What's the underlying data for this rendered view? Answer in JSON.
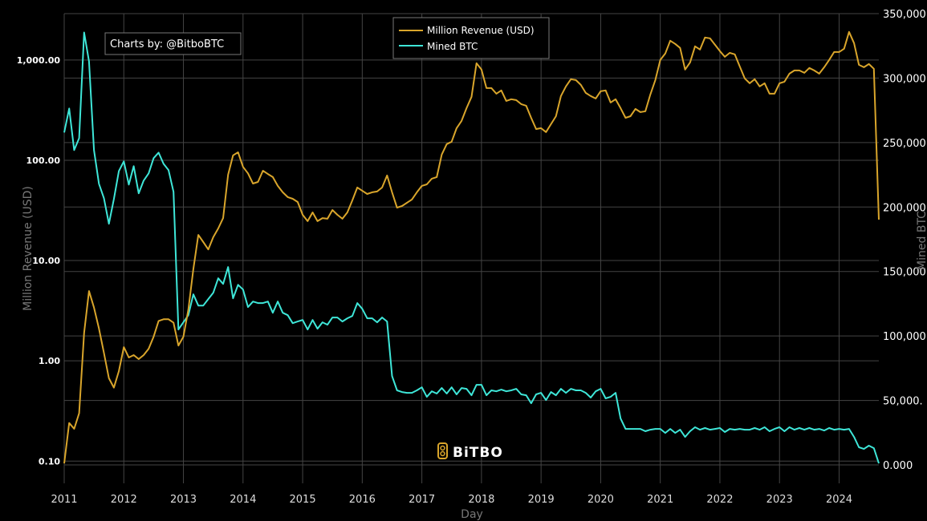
{
  "chart_data": {
    "type": "line",
    "credit": "Charts by: @BitboBTC",
    "watermark": "BITBO",
    "xlabel": "Day",
    "ylabel_left": "Million Revenue (USD)",
    "ylabel_right": "Mined BTC",
    "x_ticks": [
      "2011",
      "2012",
      "2013",
      "2014",
      "2015",
      "2016",
      "2017",
      "2018",
      "2019",
      "2020",
      "2021",
      "2022",
      "2023",
      "2024"
    ],
    "y_left_scale": "log",
    "y_left_ticks": [
      "1,000.00",
      "100.00",
      "10.00",
      "1.00",
      "0.10"
    ],
    "y_left_tick_values": [
      1000,
      100,
      10,
      1,
      0.1
    ],
    "y_left_range": [
      0.09,
      2900
    ],
    "y_right_ticks": [
      "350,000",
      "300,000",
      "250,000",
      "200,000",
      "150,000",
      "100,000",
      "50,000.",
      "0.000"
    ],
    "y_right_tick_values": [
      350000,
      300000,
      250000,
      200000,
      150000,
      100000,
      50000,
      0
    ],
    "y_right_range": [
      0,
      350000
    ],
    "x_range": [
      "2011-01",
      "2024-09"
    ],
    "grid": true,
    "legend_position": "top-center",
    "colors": {
      "revenue": "#d9a52b",
      "mined": "#3ee6d8",
      "grid": "#444444",
      "background": "#000000"
    },
    "dates": [
      "2011-01",
      "2011-02",
      "2011-03",
      "2011-04",
      "2011-05",
      "2011-06",
      "2011-07",
      "2011-08",
      "2011-09",
      "2011-10",
      "2011-11",
      "2011-12",
      "2012-01",
      "2012-02",
      "2012-03",
      "2012-04",
      "2012-05",
      "2012-06",
      "2012-07",
      "2012-08",
      "2012-09",
      "2012-10",
      "2012-11",
      "2012-12",
      "2013-01",
      "2013-02",
      "2013-03",
      "2013-04",
      "2013-05",
      "2013-06",
      "2013-07",
      "2013-08",
      "2013-09",
      "2013-10",
      "2013-11",
      "2013-12",
      "2014-01",
      "2014-02",
      "2014-03",
      "2014-04",
      "2014-05",
      "2014-06",
      "2014-07",
      "2014-08",
      "2014-09",
      "2014-10",
      "2014-11",
      "2014-12",
      "2015-01",
      "2015-02",
      "2015-03",
      "2015-04",
      "2015-05",
      "2015-06",
      "2015-07",
      "2015-08",
      "2015-09",
      "2015-10",
      "2015-11",
      "2015-12",
      "2016-01",
      "2016-02",
      "2016-03",
      "2016-04",
      "2016-05",
      "2016-06",
      "2016-07",
      "2016-08",
      "2016-09",
      "2016-10",
      "2016-11",
      "2016-12",
      "2017-01",
      "2017-02",
      "2017-03",
      "2017-04",
      "2017-05",
      "2017-06",
      "2017-07",
      "2017-08",
      "2017-09",
      "2017-10",
      "2017-11",
      "2017-12",
      "2018-01",
      "2018-02",
      "2018-03",
      "2018-04",
      "2018-05",
      "2018-06",
      "2018-07",
      "2018-08",
      "2018-09",
      "2018-10",
      "2018-11",
      "2018-12",
      "2019-01",
      "2019-02",
      "2019-03",
      "2019-04",
      "2019-05",
      "2019-06",
      "2019-07",
      "2019-08",
      "2019-09",
      "2019-10",
      "2019-11",
      "2019-12",
      "2020-01",
      "2020-02",
      "2020-03",
      "2020-04",
      "2020-05",
      "2020-06",
      "2020-07",
      "2020-08",
      "2020-09",
      "2020-10",
      "2020-11",
      "2020-12",
      "2021-01",
      "2021-02",
      "2021-03",
      "2021-04",
      "2021-05",
      "2021-06",
      "2021-07",
      "2021-08",
      "2021-09",
      "2021-10",
      "2021-11",
      "2021-12",
      "2022-01",
      "2022-02",
      "2022-03",
      "2022-04",
      "2022-05",
      "2022-06",
      "2022-07",
      "2022-08",
      "2022-09",
      "2022-10",
      "2022-11",
      "2022-12",
      "2023-01",
      "2023-02",
      "2023-03",
      "2023-04",
      "2023-05",
      "2023-06",
      "2023-07",
      "2023-08",
      "2023-09",
      "2023-10",
      "2023-11",
      "2023-12",
      "2024-01",
      "2024-02",
      "2024-03",
      "2024-04",
      "2024-05",
      "2024-06",
      "2024-07",
      "2024-08",
      "2024-09"
    ],
    "series": [
      {
        "name": "Million Revenue (USD)",
        "axis": "left",
        "values": [
          0.095,
          0.24,
          0.21,
          0.3,
          1.9,
          4.97,
          3.4,
          2.1,
          1.2,
          0.67,
          0.54,
          0.79,
          1.37,
          1.08,
          1.14,
          1.04,
          1.14,
          1.32,
          1.74,
          2.5,
          2.6,
          2.6,
          2.4,
          1.42,
          1.74,
          3.25,
          8.2,
          18.0,
          15.3,
          12.9,
          17.1,
          20.9,
          26.5,
          71.8,
          112,
          120,
          86,
          74,
          58.6,
          60.8,
          78.7,
          73,
          68,
          55.5,
          47.9,
          42.9,
          41.3,
          38.4,
          28.6,
          24.7,
          30.2,
          24.7,
          26.5,
          26.1,
          31.9,
          28.6,
          26.1,
          30.2,
          39.8,
          53.5,
          49.7,
          46.1,
          47.9,
          48.8,
          53.5,
          70.5,
          47.9,
          33.7,
          35.0,
          37.7,
          40.6,
          47.9,
          55.5,
          57.5,
          65.5,
          68,
          114,
          145,
          153,
          209,
          247,
          331,
          429,
          929,
          802,
          525,
          525,
          461,
          497,
          391,
          406,
          398,
          363,
          350,
          265,
          205,
          209,
          191,
          229,
          275,
          437,
          545,
          643,
          631,
          565,
          470,
          437,
          413,
          488,
          497,
          377,
          406,
          331,
          265,
          275,
          325,
          302,
          308,
          453,
          631,
          1000,
          1159,
          1556,
          1445,
          1318,
          802,
          946,
          1368,
          1271,
          1675,
          1644,
          1419,
          1225,
          1076,
          1180,
          1138,
          863,
          655,
          586,
          643,
          545,
          586,
          461,
          461,
          586,
          608,
          731,
          787,
          787,
          745,
          832,
          787,
          731,
          847,
          1000,
          1202,
          1202,
          1294,
          1905,
          1472,
          895,
          847,
          912,
          817,
          25.6
        ]
      },
      {
        "name": "Mined BTC",
        "axis": "right",
        "values": [
          257800,
          276400,
          244100,
          253400,
          335400,
          313000,
          244100,
          218000,
          206800,
          187000,
          206200,
          227900,
          235400,
          217400,
          231700,
          210600,
          220500,
          226100,
          237900,
          242200,
          233500,
          228600,
          211800,
          105000,
          110600,
          116100,
          132300,
          123600,
          123600,
          128600,
          133500,
          144700,
          140400,
          153400,
          129200,
          139700,
          136000,
          122400,
          126700,
          125500,
          125500,
          126700,
          118000,
          126700,
          118000,
          116100,
          109900,
          111200,
          112400,
          105000,
          112400,
          105600,
          110600,
          108700,
          114300,
          114300,
          111200,
          113700,
          115500,
          125500,
          121100,
          113700,
          113700,
          110600,
          114300,
          111200,
          68900,
          57800,
          56500,
          55900,
          55900,
          57800,
          60200,
          52800,
          57100,
          55300,
          59600,
          55300,
          60200,
          54700,
          59600,
          59000,
          54000,
          62100,
          62100,
          54000,
          57800,
          57100,
          58400,
          57100,
          57800,
          59000,
          54700,
          54000,
          47800,
          54700,
          55900,
          50300,
          56500,
          54000,
          59000,
          55900,
          59000,
          57800,
          57800,
          55900,
          52200,
          57100,
          59000,
          51600,
          52800,
          55900,
          36000,
          27900,
          27900,
          27900,
          27900,
          26100,
          27300,
          27900,
          27900,
          24800,
          27900,
          24800,
          27300,
          21700,
          26100,
          29200,
          27300,
          28600,
          27300,
          27900,
          28600,
          25500,
          27900,
          27300,
          27900,
          27300,
          27300,
          28600,
          27300,
          29200,
          26100,
          27900,
          29200,
          26100,
          29200,
          27300,
          28600,
          27300,
          28600,
          27300,
          27900,
          26700,
          28600,
          27300,
          27900,
          27300,
          27900,
          21700,
          13700,
          12400,
          14900,
          13000,
          1200
        ]
      }
    ]
  }
}
